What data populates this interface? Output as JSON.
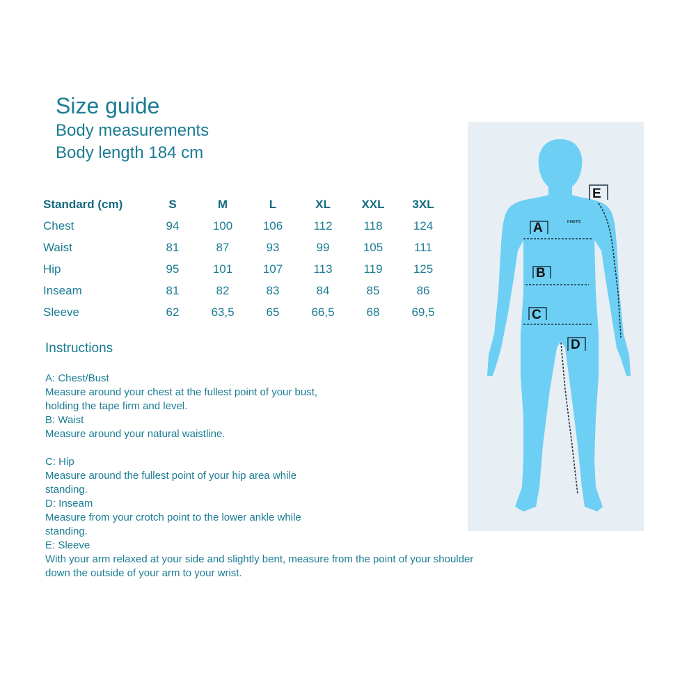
{
  "header": {
    "title": "Size guide",
    "subtitle": "Body measurements",
    "body_length": "Body length 184 cm"
  },
  "table": {
    "columns": [
      "Standard (cm)",
      "S",
      "M",
      "L",
      "XL",
      "XXL",
      "3XL"
    ],
    "rows": [
      {
        "label": "Chest",
        "values": [
          "94",
          "100",
          "106",
          "112",
          "118",
          "124"
        ]
      },
      {
        "label": "Waist",
        "values": [
          "81",
          "87",
          "93",
          "99",
          "105",
          "111"
        ]
      },
      {
        "label": "Hip",
        "values": [
          "95",
          "101",
          "107",
          "113",
          "119",
          "125"
        ]
      },
      {
        "label": "Inseam",
        "values": [
          "81",
          "82",
          "83",
          "84",
          "85",
          "86"
        ]
      },
      {
        "label": "Sleeve",
        "values": [
          "62",
          "63,5",
          "65",
          "66,5",
          "68",
          "69,5"
        ]
      }
    ]
  },
  "instructions": {
    "heading": "Instructions",
    "items": [
      {
        "title": "A: Chest/Bust",
        "text": "Measure around your chest at the fullest point of your bust, holding the tape firm and level."
      },
      {
        "title": "B: Waist",
        "text": "Measure around your natural waistline."
      },
      {
        "title": "C: Hip",
        "text": "Measure around the fullest point of your hip area while standing."
      },
      {
        "title": "D: Inseam",
        "text": "Measure from your crotch point to the lower ankle while standing."
      },
      {
        "title": "E: Sleeve",
        "text": "With your arm relaxed at your side and slightly bent, measure from the point of your shoulder down the outside of your arm to your wrist."
      }
    ]
  },
  "figure": {
    "labels": [
      "A",
      "B",
      "C",
      "D",
      "E"
    ],
    "logo": "KINETIC",
    "body_color": "#6dcff3",
    "panel_color": "#e7eef4"
  }
}
